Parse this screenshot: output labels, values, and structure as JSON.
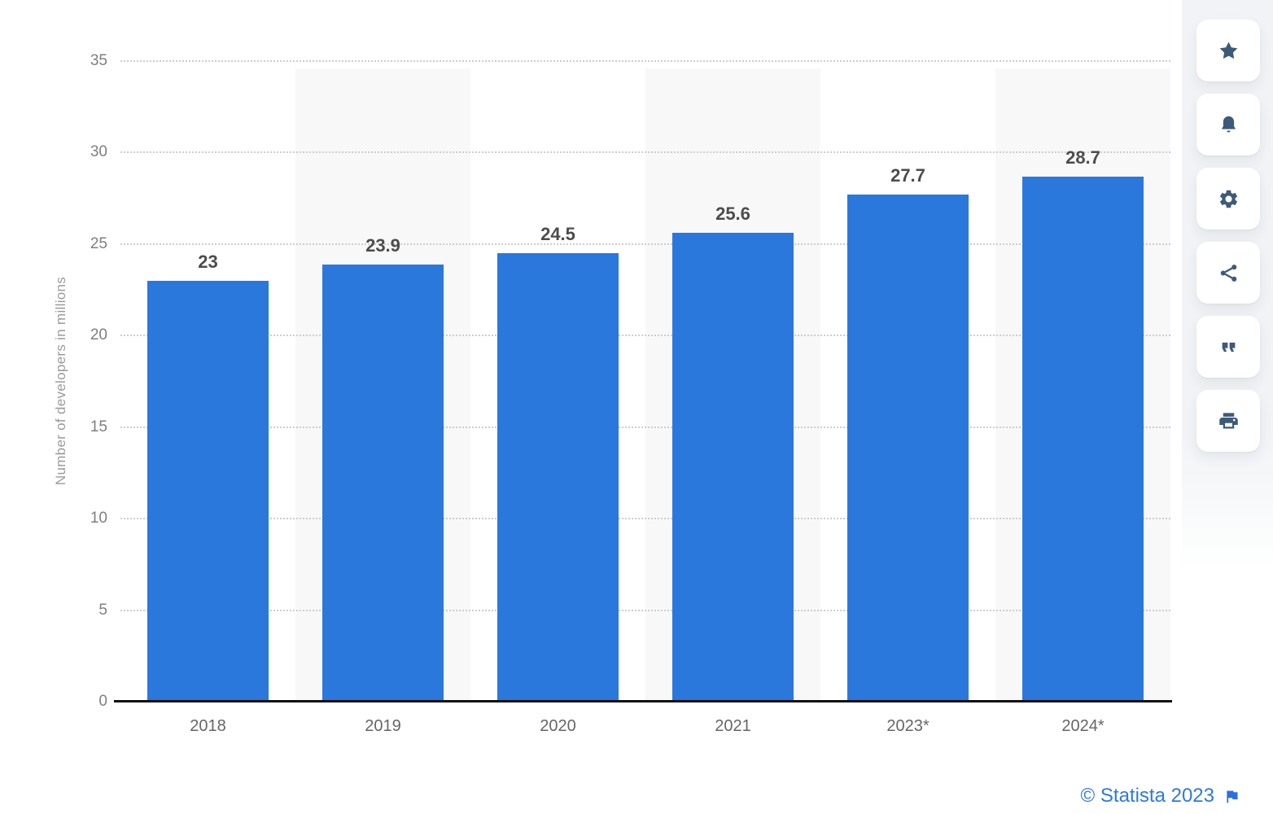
{
  "chart_data": {
    "type": "bar",
    "categories": [
      "2018",
      "2019",
      "2020",
      "2021",
      "2023*",
      "2024*"
    ],
    "values": [
      23,
      23.9,
      24.5,
      25.6,
      27.7,
      28.7
    ],
    "value_labels": [
      "23",
      "23.9",
      "24.5",
      "25.6",
      "27.7",
      "28.7"
    ],
    "title": "",
    "xlabel": "",
    "ylabel": "Number of developers in millions",
    "ylim": [
      0,
      35
    ],
    "yticks": [
      0,
      5,
      10,
      15,
      20,
      25,
      30,
      35
    ],
    "grid": "horizontal-dotted",
    "legend": "none",
    "bar_color": "#2b78dd",
    "band_color": "#f8f8f9",
    "banded_columns": [
      1,
      3,
      5
    ]
  },
  "toolbar": {
    "icon_color": "#3d5a78",
    "buttons": [
      {
        "id": "favorite",
        "icon": "star-icon"
      },
      {
        "id": "alerts",
        "icon": "bell-icon"
      },
      {
        "id": "settings",
        "icon": "gear-icon"
      },
      {
        "id": "share",
        "icon": "share-icon"
      },
      {
        "id": "cite",
        "icon": "quote-icon"
      },
      {
        "id": "print",
        "icon": "printer-icon"
      }
    ]
  },
  "footer": {
    "credit": "© Statista 2023",
    "credit_color": "#2e79e0",
    "flag_color": "#2b6fe0"
  }
}
